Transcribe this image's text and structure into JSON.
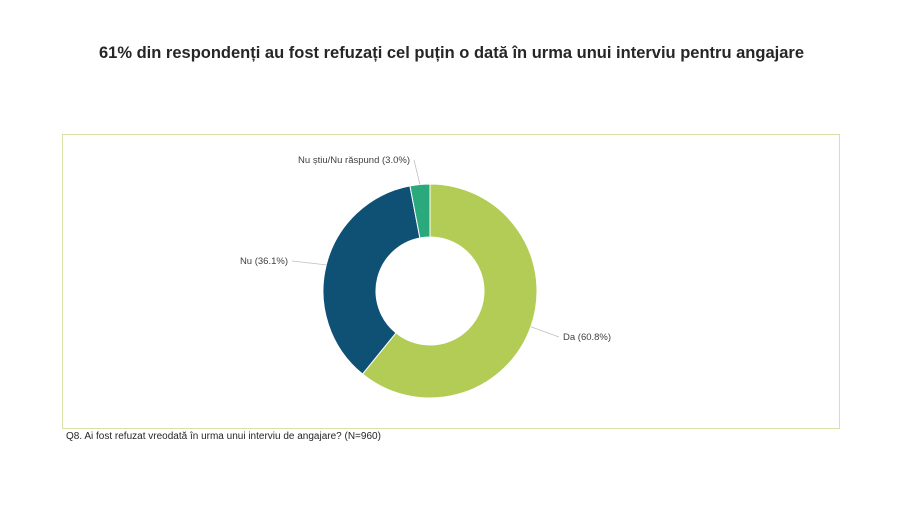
{
  "title": "61% din respondenți au fost refuzați cel puțin o dată în urma unui interviu pentru angajare",
  "footnote": "Q8. Ai fost refuzat vreodată în urma unui interviu de angajare?  (N=960)",
  "colors": {
    "da": "#b3cc55",
    "nu": "#0f5075",
    "nu_stiu": "#2aaa7c",
    "frame": "#d6e3a8"
  },
  "chart_data": {
    "type": "pie",
    "style": "donut",
    "title": "",
    "slices": [
      {
        "label": "Da (60.8%)",
        "category": "Da",
        "value": 60.8,
        "color": "#b3cc55"
      },
      {
        "label": "Nu (36.1%)",
        "category": "Nu",
        "value": 36.1,
        "color": "#0f5075"
      },
      {
        "label": "Nu știu/Nu răspund (3.0%)",
        "category": "Nu știu/Nu răspund",
        "value": 3.0,
        "color": "#2aaa7c"
      }
    ]
  }
}
